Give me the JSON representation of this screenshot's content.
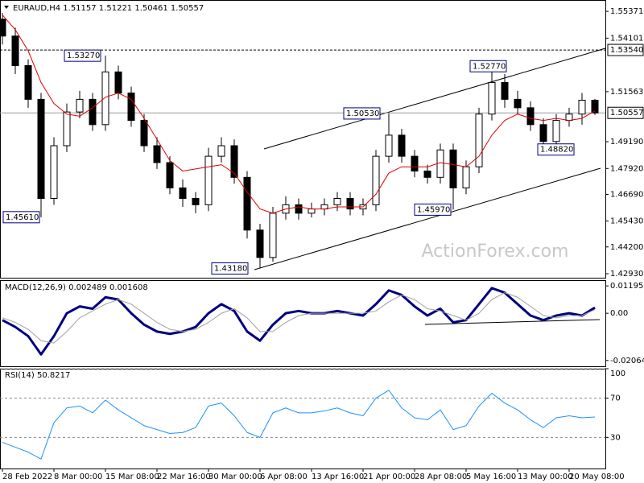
{
  "chart_data": [
    {
      "type": "candlestick",
      "title": "EURAUD,H4  1.51157 1.51221 1.50461 1.50557",
      "watermark": "ActionForex.com",
      "categories": [
        "28 Feb 2022",
        null,
        null,
        null,
        "8 Mar 00:00",
        null,
        null,
        null,
        "15 Mar 08:00",
        null,
        null,
        null,
        "22 Mar 16:00",
        null,
        null,
        null,
        "30 Mar 00:00",
        null,
        null,
        null,
        "6 Apr 08:00",
        null,
        null,
        null,
        "13 Apr 16:00",
        null,
        null,
        null,
        "21 Apr 00:00",
        null,
        null,
        null,
        "28 Apr 08:00",
        null,
        null,
        null,
        "5 May 16:00",
        null,
        null,
        null,
        "13 May 00:00",
        null,
        null,
        null,
        "20 May 08:00",
        null,
        null
      ],
      "open": [
        1.55,
        1.542,
        1.528,
        1.512,
        1.465,
        1.49,
        1.506,
        1.512,
        1.5,
        1.525,
        1.515,
        1.502,
        1.49,
        1.482,
        1.47,
        1.465,
        1.462,
        1.485,
        1.49,
        1.475,
        1.45,
        1.437,
        1.458,
        1.462,
        1.458,
        1.46,
        1.462,
        1.465,
        1.46,
        1.462,
        1.485,
        1.495,
        1.485,
        1.478,
        1.475,
        1.488,
        1.47,
        1.48,
        1.505,
        1.52,
        1.512,
        1.508,
        1.5,
        1.492,
        1.502,
        1.505,
        1.51157
      ],
      "high": [
        1.553,
        1.546,
        1.531,
        1.515,
        1.494,
        1.51,
        1.516,
        1.515,
        1.5327,
        1.528,
        1.518,
        1.505,
        1.494,
        1.485,
        1.474,
        1.468,
        1.489,
        1.494,
        1.493,
        1.478,
        1.453,
        1.461,
        1.466,
        1.465,
        1.463,
        1.465,
        1.468,
        1.468,
        1.465,
        1.488,
        1.5053,
        1.498,
        1.488,
        1.481,
        1.491,
        1.491,
        1.483,
        1.508,
        1.5277,
        1.524,
        1.516,
        1.511,
        1.503,
        1.505,
        1.508,
        1.515,
        1.51221
      ],
      "low": [
        1.538,
        1.524,
        1.508,
        1.4561,
        1.462,
        1.487,
        1.503,
        1.497,
        1.497,
        1.512,
        1.499,
        1.487,
        1.479,
        1.467,
        1.461,
        1.458,
        1.459,
        1.482,
        1.472,
        1.446,
        1.4318,
        1.435,
        1.455,
        1.455,
        1.456,
        1.457,
        1.459,
        1.457,
        1.457,
        1.459,
        1.482,
        1.482,
        1.475,
        1.472,
        1.472,
        1.4597,
        1.467,
        1.477,
        1.502,
        1.508,
        1.505,
        1.497,
        1.4882,
        1.49,
        1.499,
        1.5,
        1.50461
      ],
      "close": [
        1.542,
        1.528,
        1.512,
        1.465,
        1.49,
        1.506,
        1.512,
        1.5,
        1.525,
        1.515,
        1.502,
        1.49,
        1.482,
        1.47,
        1.465,
        1.462,
        1.485,
        1.49,
        1.475,
        1.45,
        1.437,
        1.458,
        1.462,
        1.458,
        1.46,
        1.462,
        1.465,
        1.46,
        1.462,
        1.485,
        1.495,
        1.485,
        1.478,
        1.475,
        1.488,
        1.47,
        1.48,
        1.505,
        1.52,
        1.512,
        1.508,
        1.5,
        1.492,
        1.502,
        1.505,
        1.51157,
        1.50557
      ],
      "moving_average": [
        1.552,
        1.545,
        1.535,
        1.52,
        1.51,
        1.505,
        1.504,
        1.508,
        1.513,
        1.515,
        1.512,
        1.503,
        1.493,
        1.483,
        1.478,
        1.479,
        1.48,
        1.481,
        1.477,
        1.468,
        1.46,
        1.458,
        1.46,
        1.461,
        1.46,
        1.46,
        1.461,
        1.461,
        1.461,
        1.467,
        1.477,
        1.48,
        1.48,
        1.48,
        1.482,
        1.481,
        1.48,
        1.485,
        1.495,
        1.502,
        1.505,
        1.503,
        1.502,
        1.503,
        1.502,
        1.503,
        1.5065
      ],
      "moving_average_color": "#e00000",
      "annotations": [
        {
          "value": 1.5327,
          "label": "1.53270"
        },
        {
          "value": 1.4561,
          "label": "1.45610"
        },
        {
          "value": 1.4318,
          "label": "1.43180"
        },
        {
          "value": 1.5053,
          "label": "1.50530"
        },
        {
          "value": 1.4597,
          "label": "1.45970"
        },
        {
          "value": 1.5277,
          "label": "1.52770"
        },
        {
          "value": 1.4882,
          "label": "1.48820"
        }
      ],
      "levels": [
        {
          "value": 1.5354,
          "label": "1.53540"
        },
        1.50557
      ],
      "ylim": [
        1.4274,
        1.5591
      ],
      "yticks": [
        {
          "value": 1.4293,
          "label": "1.42930"
        },
        {
          "value": 1.442,
          "label": "1.44200"
        },
        {
          "value": 1.4543,
          "label": "1.45430"
        },
        {
          "value": 1.4669,
          "label": "1.46690"
        },
        {
          "value": 1.4792,
          "label": "1.47920"
        },
        {
          "value": 1.4919,
          "label": "1.49190"
        },
        1.51563,
        1.54101,
        1.55371
      ]
    },
    {
      "type": "line",
      "title": "MACD(12,26,9) 0.002489 0.001608",
      "series": [
        {
          "color": "#000080",
          "values": [
            -0.003,
            -0.006,
            -0.01,
            -0.018,
            -0.01,
            0.0,
            0.003,
            0.002,
            0.007,
            0.006,
            0.0,
            -0.005,
            -0.008,
            -0.009,
            -0.008,
            -0.006,
            0.0,
            0.004,
            0.001,
            -0.008,
            -0.012,
            -0.005,
            0.0,
            0.001,
            0.0,
            0.0,
            0.001,
            0.0,
            -0.001,
            0.004,
            0.01,
            0.008,
            0.003,
            -0.001,
            0.002,
            -0.004,
            -0.003,
            0.004,
            0.011,
            0.009,
            0.004,
            -0.001,
            -0.003,
            -0.001,
            0.0,
            -0.001,
            0.002489
          ]
        },
        {
          "color": "#a0a0a0",
          "values": [
            -0.002,
            -0.004,
            -0.007,
            -0.012,
            -0.013,
            -0.008,
            -0.002,
            0.001,
            0.004,
            0.006,
            0.004,
            0.0,
            -0.004,
            -0.007,
            -0.008,
            -0.007,
            -0.004,
            0.0,
            0.002,
            -0.002,
            -0.008,
            -0.008,
            -0.004,
            -0.001,
            0.0,
            0.0,
            0.0,
            0.0,
            0.0,
            0.001,
            0.005,
            0.008,
            0.006,
            0.002,
            0.001,
            -0.001,
            -0.003,
            0.0,
            0.006,
            0.009,
            0.007,
            0.003,
            -0.001,
            -0.002,
            -0.001,
            -0.001,
            0.001608
          ]
        }
      ],
      "ylim": [
        -0.02318,
        0.01449
      ],
      "yticks": [
        -0.020649,
        {
          "value": 0,
          "label": "0.00"
        },
        0.011958
      ]
    },
    {
      "type": "line",
      "title": "RSI(14) 50.8217",
      "series": [
        {
          "color": "#1e90ff",
          "values": [
            25,
            20,
            15,
            8,
            45,
            60,
            62,
            55,
            68,
            58,
            50,
            42,
            38,
            34,
            35,
            40,
            62,
            65,
            52,
            35,
            30,
            55,
            60,
            55,
            55,
            57,
            60,
            55,
            52,
            70,
            78,
            60,
            50,
            48,
            58,
            38,
            42,
            62,
            75,
            65,
            58,
            48,
            40,
            50,
            52,
            50,
            50.8217
          ]
        }
      ],
      "ylim": [
        -1.7,
        100
      ],
      "yticks": [
        30,
        70,
        100
      ],
      "grid_dashed": true
    }
  ]
}
